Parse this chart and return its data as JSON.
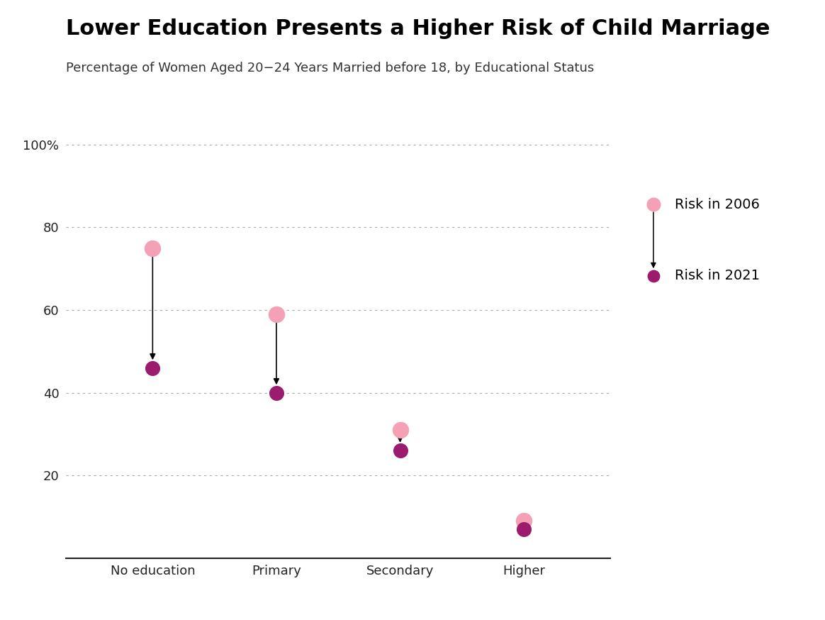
{
  "title": "Lower Education Presents a Higher Risk of Child Marriage",
  "subtitle": "Percentage of Women Aged 20−24 Years Married before 18, by Educational Status",
  "categories": [
    "No education",
    "Primary",
    "Secondary",
    "Higher"
  ],
  "values_2006": [
    75,
    59,
    31,
    9
  ],
  "values_2021": [
    46,
    40,
    26,
    7
  ],
  "color_2006": "#F4A0B5",
  "color_2021": "#9B1B6E",
  "marker_size_2006": 250,
  "marker_size_2021": 200,
  "ylim": [
    0,
    108
  ],
  "yticks": [
    20,
    40,
    60,
    80,
    100
  ],
  "ytick_labels": [
    "20",
    "40",
    "60",
    "80",
    "100%"
  ],
  "background_color": "#FFFFFF",
  "grid_color": "#AAAAAA",
  "title_fontsize": 22,
  "subtitle_fontsize": 13,
  "tick_fontsize": 13,
  "legend_fontsize": 14
}
